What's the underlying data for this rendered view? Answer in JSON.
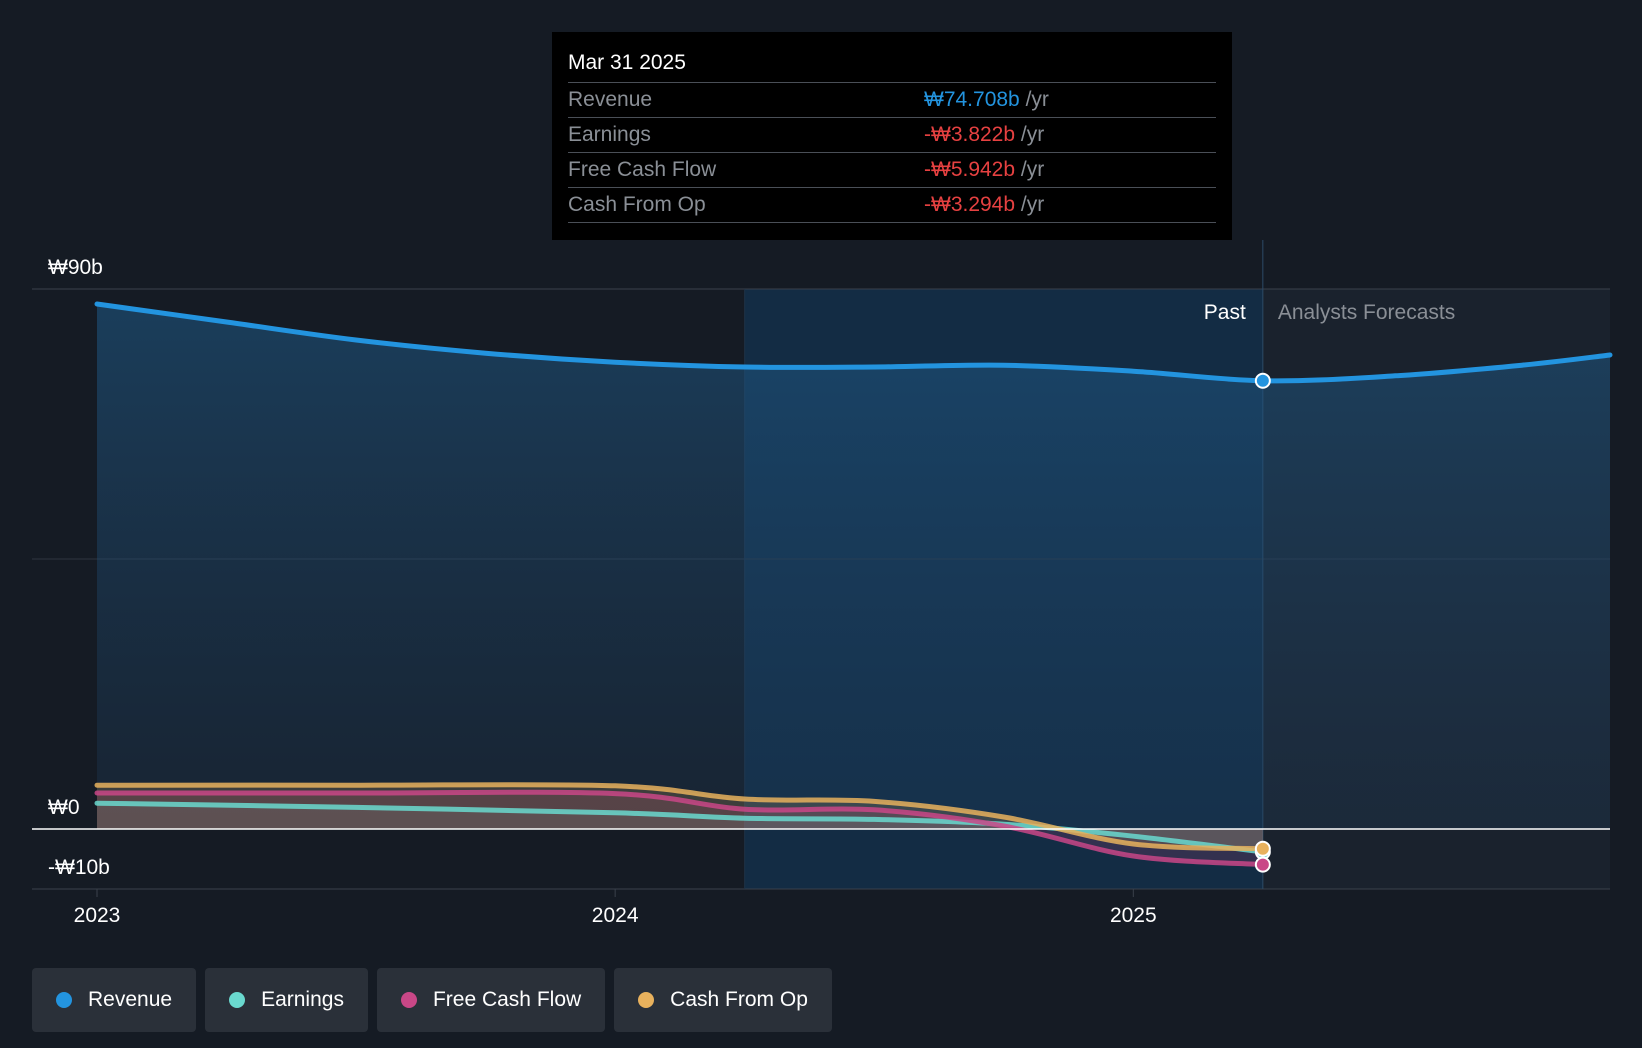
{
  "tooltip": {
    "date": "Mar 31 2025",
    "rows": [
      {
        "label": "Revenue",
        "value": "₩74.708b",
        "unit": "/yr",
        "color": "#2394df"
      },
      {
        "label": "Earnings",
        "value": "-₩3.822b",
        "unit": "/yr",
        "color": "#e64141"
      },
      {
        "label": "Free Cash Flow",
        "value": "-₩5.942b",
        "unit": "/yr",
        "color": "#e64141"
      },
      {
        "label": "Cash From Op",
        "value": "-₩3.294b",
        "unit": "/yr",
        "color": "#e64141"
      }
    ]
  },
  "regions": {
    "past": "Past",
    "forecast": "Analysts Forecasts"
  },
  "legend": [
    {
      "label": "Revenue",
      "color": "#2394df"
    },
    {
      "label": "Earnings",
      "color": "#6ad9cf"
    },
    {
      "label": "Free Cash Flow",
      "color": "#c94787"
    },
    {
      "label": "Cash From Op",
      "color": "#e8b15d"
    }
  ],
  "chart_data": {
    "type": "line",
    "y_tick_labels": [
      "₩90b",
      "₩0",
      "-₩10b"
    ],
    "ylim": [
      -10,
      90
    ],
    "x_tick_labels": [
      "2023",
      "2024",
      "2025"
    ],
    "xlim": [
      2023.0,
      2025.92
    ],
    "past_forecast_split": 2025.25,
    "highlight_start": 2024.25,
    "series": [
      {
        "name": "Revenue",
        "color": "#2394df",
        "x": [
          2023.0,
          2023.25,
          2023.5,
          2023.75,
          2024.0,
          2024.25,
          2024.5,
          2024.75,
          2025.0,
          2025.25,
          2025.5,
          2025.75,
          2025.92
        ],
        "y": [
          87.5,
          84.5,
          81.5,
          79.3,
          77.8,
          77.0,
          77.0,
          77.3,
          76.3,
          74.708,
          75.5,
          77.3,
          79.0
        ]
      },
      {
        "name": "Earnings",
        "color": "#6ad9cf",
        "x": [
          2023.0,
          2023.5,
          2024.0,
          2024.25,
          2024.5,
          2024.75,
          2025.0,
          2025.25
        ],
        "y": [
          4.3,
          3.6,
          2.7,
          1.8,
          1.6,
          0.8,
          -1.2,
          -3.822
        ]
      },
      {
        "name": "Free Cash Flow",
        "color": "#c94787",
        "x": [
          2023.0,
          2023.5,
          2024.0,
          2024.25,
          2024.5,
          2024.75,
          2025.0,
          2025.25
        ],
        "y": [
          6.0,
          6.0,
          5.9,
          3.3,
          3.2,
          0.5,
          -4.5,
          -5.942
        ]
      },
      {
        "name": "Cash From Op",
        "color": "#e8b15d",
        "x": [
          2023.0,
          2023.5,
          2024.0,
          2024.25,
          2024.5,
          2024.75,
          2025.0,
          2025.25
        ],
        "y": [
          7.3,
          7.3,
          7.2,
          5.0,
          4.6,
          2.0,
          -2.5,
          -3.294
        ]
      }
    ]
  }
}
